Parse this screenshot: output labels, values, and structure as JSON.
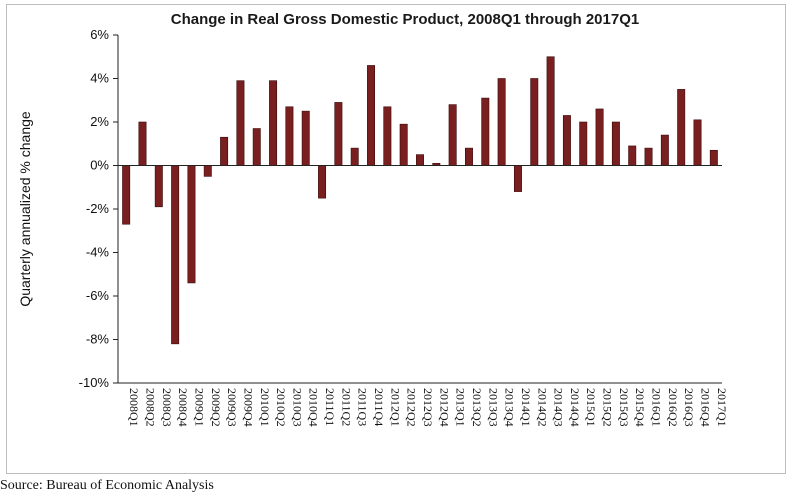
{
  "chart_data": {
    "type": "bar",
    "title": "Change in Real Gross Domestic Product, 2008Q1 through 2017Q1",
    "ylabel": "Quarterly annualized % change",
    "xlabel": "",
    "ylim": [
      -10,
      6
    ],
    "yticks": [
      6,
      4,
      2,
      0,
      -2,
      -4,
      -6,
      -8,
      -10
    ],
    "ytick_labels": [
      "6%",
      "4%",
      "2%",
      "0%",
      "-2%",
      "-4%",
      "-6%",
      "-8%",
      "-10%"
    ],
    "categories": [
      "2008Q1",
      "2008Q2",
      "2008Q3",
      "2008Q4",
      "2009Q1",
      "2009Q2",
      "2009Q3",
      "2009Q4",
      "2010Q1",
      "2010Q2",
      "2010Q3",
      "2010Q4",
      "2011Q1",
      "2011Q2",
      "2011Q3",
      "2011Q4",
      "2012Q1",
      "2012Q2",
      "2012Q3",
      "2012Q4",
      "2013Q1",
      "2013Q2",
      "2013Q3",
      "2013Q4",
      "2014Q1",
      "2014Q2",
      "2014Q3",
      "2014Q4",
      "2015Q1",
      "2015Q2",
      "2015Q3",
      "2015Q4",
      "2016Q1",
      "2016Q2",
      "2016Q3",
      "2016Q4",
      "2017Q1"
    ],
    "values": [
      -2.7,
      2.0,
      -1.9,
      -8.2,
      -5.4,
      -0.5,
      1.3,
      3.9,
      1.7,
      3.9,
      2.7,
      2.5,
      -1.5,
      2.9,
      0.8,
      4.6,
      2.7,
      1.9,
      0.5,
      0.1,
      2.8,
      0.8,
      3.1,
      4.0,
      -1.2,
      4.0,
      5.0,
      2.3,
      2.0,
      2.6,
      2.0,
      0.9,
      0.8,
      1.4,
      3.5,
      2.1,
      0.7
    ],
    "bar_color": "#7a1f1f",
    "bar_edge_color": "#3a0a0a",
    "grid": false
  },
  "source": "Source:  Bureau of Economic Analysis"
}
